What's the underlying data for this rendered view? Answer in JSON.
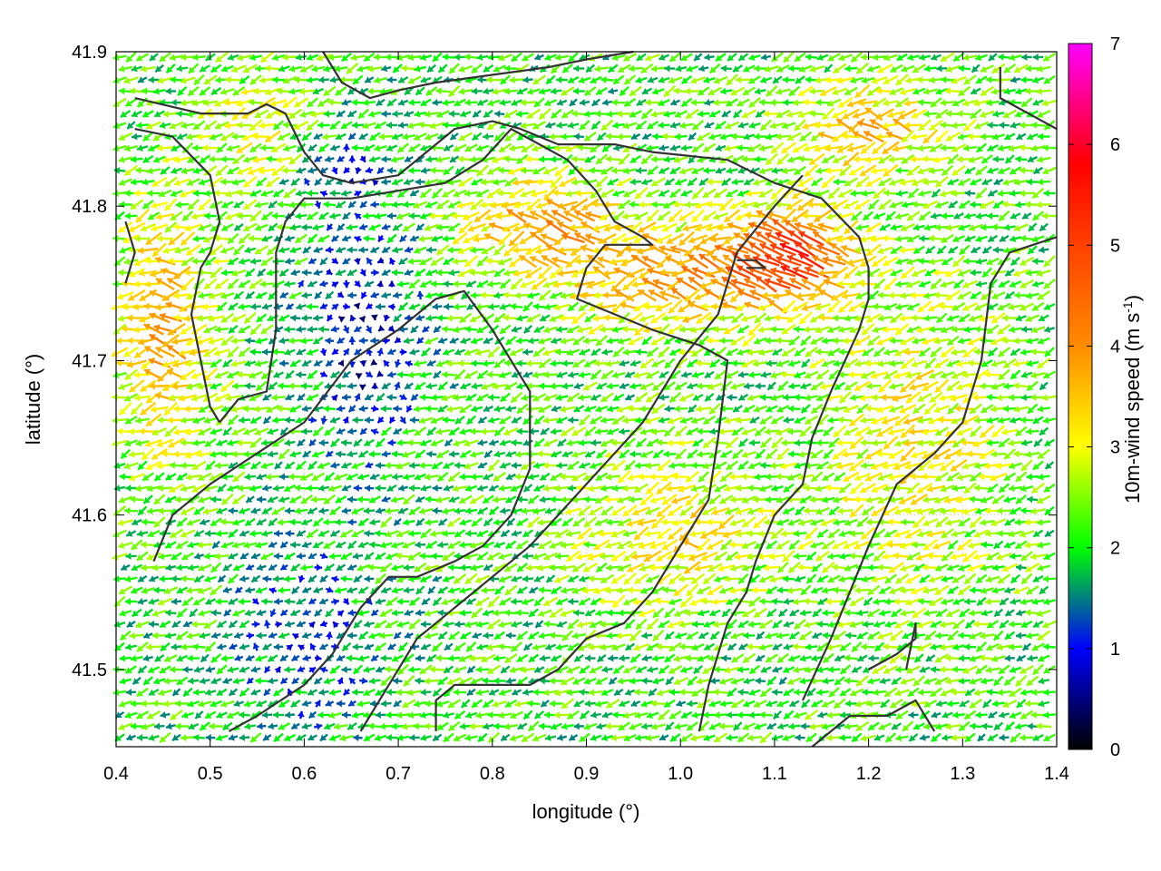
{
  "chart_data": {
    "type": "quiver",
    "xlabel": "longitude (°)",
    "ylabel": "latitude (°)",
    "xlim": [
      0.4,
      1.4
    ],
    "ylim": [
      41.45,
      41.9
    ],
    "x_ticks": [
      "0.4",
      "0.5",
      "0.6",
      "0.7",
      "0.8",
      "0.9",
      "1.0",
      "1.1",
      "1.2",
      "1.3",
      "1.4"
    ],
    "y_ticks": [
      "41.5",
      "41.6",
      "41.7",
      "41.8",
      "41.9"
    ],
    "grid": true,
    "colorbar": {
      "label_main": "10m-wind speed (m s",
      "label_sup": "-1",
      "label_close": ")",
      "range": [
        0,
        7
      ],
      "ticks": [
        "0",
        "1",
        "2",
        "3",
        "4",
        "5",
        "6",
        "7"
      ],
      "colors": [
        "#000000",
        "#0000ff",
        "#00ff00",
        "#ffff00",
        "#ff8c00",
        "#ff0000",
        "#ff00ff"
      ]
    },
    "wind_direction_predominant": "west-southwest (toward the west)",
    "contours": [
      [
        [
          0.42,
          41.87
        ],
        [
          0.49,
          41.86
        ],
        [
          0.54,
          41.86
        ],
        [
          0.56,
          41.866
        ],
        [
          0.58,
          41.86
        ],
        [
          0.6,
          41.835
        ],
        [
          0.62,
          41.82
        ],
        [
          0.65,
          41.815
        ],
        [
          0.7,
          41.82
        ],
        [
          0.73,
          41.835
        ],
        [
          0.76,
          41.85
        ],
        [
          0.8,
          41.855
        ],
        [
          0.83,
          41.85
        ],
        [
          0.87,
          41.84
        ],
        [
          0.93,
          41.84
        ],
        [
          0.97,
          41.835
        ],
        [
          1.05,
          41.83
        ],
        [
          1.1,
          41.815
        ],
        [
          1.15,
          41.805
        ],
        [
          1.19,
          41.78
        ],
        [
          1.2,
          41.76
        ],
        [
          1.2,
          41.74
        ],
        [
          1.19,
          41.72
        ],
        [
          1.16,
          41.68
        ],
        [
          1.14,
          41.65
        ],
        [
          1.13,
          41.62
        ],
        [
          1.1,
          41.6
        ],
        [
          1.08,
          41.57
        ],
        [
          1.07,
          41.55
        ],
        [
          1.05,
          41.53
        ],
        [
          1.03,
          41.49
        ],
        [
          1.02,
          41.46
        ]
      ],
      [
        [
          0.42,
          41.85
        ],
        [
          0.46,
          41.845
        ],
        [
          0.5,
          41.82
        ],
        [
          0.51,
          41.79
        ],
        [
          0.5,
          41.77
        ],
        [
          0.49,
          41.76
        ],
        [
          0.48,
          41.73
        ],
        [
          0.49,
          41.7
        ],
        [
          0.5,
          41.67
        ],
        [
          0.51,
          41.66
        ]
      ],
      [
        [
          0.51,
          41.66
        ],
        [
          0.53,
          41.675
        ],
        [
          0.56,
          41.68
        ],
        [
          0.57,
          41.72
        ],
        [
          0.57,
          41.77
        ],
        [
          0.58,
          41.79
        ],
        [
          0.6,
          41.805
        ],
        [
          0.65,
          41.805
        ],
        [
          0.7,
          41.81
        ],
        [
          0.75,
          41.815
        ],
        [
          0.79,
          41.83
        ],
        [
          0.82,
          41.85
        ],
        [
          0.85,
          41.84
        ],
        [
          0.88,
          41.83
        ],
        [
          0.91,
          41.81
        ],
        [
          0.93,
          41.79
        ],
        [
          0.96,
          41.78
        ],
        [
          0.97,
          41.775
        ],
        [
          0.92,
          41.775
        ],
        [
          0.9,
          41.76
        ],
        [
          0.89,
          41.74
        ],
        [
          0.93,
          41.73
        ],
        [
          0.97,
          41.72
        ],
        [
          1.02,
          41.71
        ],
        [
          1.05,
          41.7
        ],
        [
          1.04,
          41.65
        ],
        [
          1.03,
          41.61
        ],
        [
          1.0,
          41.58
        ],
        [
          0.97,
          41.55
        ],
        [
          0.94,
          41.53
        ],
        [
          0.9,
          41.52
        ],
        [
          0.87,
          41.5
        ],
        [
          0.84,
          41.49
        ],
        [
          0.8,
          41.49
        ],
        [
          0.76,
          41.49
        ],
        [
          0.74,
          41.48
        ],
        [
          0.74,
          41.46
        ]
      ],
      [
        [
          0.44,
          41.57
        ],
        [
          0.46,
          41.6
        ],
        [
          0.5,
          41.62
        ],
        [
          0.55,
          41.64
        ],
        [
          0.6,
          41.66
        ],
        [
          0.65,
          41.7
        ],
        [
          0.7,
          41.72
        ],
        [
          0.74,
          41.74
        ],
        [
          0.77,
          41.745
        ],
        [
          0.8,
          41.72
        ],
        [
          0.84,
          41.68
        ],
        [
          0.84,
          41.63
        ],
        [
          0.82,
          41.6
        ],
        [
          0.79,
          41.58
        ],
        [
          0.76,
          41.57
        ],
        [
          0.72,
          41.56
        ],
        [
          0.69,
          41.56
        ],
        [
          0.66,
          41.54
        ],
        [
          0.63,
          41.51
        ],
        [
          0.6,
          41.49
        ],
        [
          0.55,
          41.47
        ],
        [
          0.52,
          41.46
        ]
      ],
      [
        [
          0.66,
          41.46
        ],
        [
          0.69,
          41.49
        ],
        [
          0.72,
          41.52
        ],
        [
          0.76,
          41.54
        ],
        [
          0.8,
          41.56
        ],
        [
          0.84,
          41.58
        ],
        [
          0.87,
          41.6
        ],
        [
          0.9,
          41.62
        ],
        [
          0.93,
          41.64
        ],
        [
          0.96,
          41.66
        ],
        [
          1.0,
          41.7
        ],
        [
          1.04,
          41.73
        ],
        [
          1.06,
          41.77
        ],
        [
          1.1,
          41.8
        ],
        [
          1.13,
          41.82
        ]
      ],
      [
        [
          1.14,
          41.45
        ],
        [
          1.18,
          41.47
        ],
        [
          1.22,
          41.47
        ],
        [
          1.25,
          41.48
        ],
        [
          1.27,
          41.46
        ]
      ],
      [
        [
          1.2,
          41.5
        ],
        [
          1.23,
          41.51
        ],
        [
          1.25,
          41.52
        ],
        [
          1.25,
          41.53
        ],
        [
          1.24,
          41.5
        ]
      ],
      [
        [
          1.13,
          41.48
        ],
        [
          1.16,
          41.52
        ],
        [
          1.2,
          41.58
        ],
        [
          1.23,
          41.62
        ],
        [
          1.27,
          41.64
        ],
        [
          1.3,
          41.66
        ],
        [
          1.32,
          41.7
        ],
        [
          1.33,
          41.75
        ],
        [
          1.35,
          41.77
        ],
        [
          1.4,
          41.78
        ]
      ],
      [
        [
          1.34,
          41.89
        ],
        [
          1.34,
          41.87
        ],
        [
          1.37,
          41.86
        ],
        [
          1.4,
          41.85
        ]
      ],
      [
        [
          0.62,
          41.9
        ],
        [
          0.64,
          41.88
        ],
        [
          0.67,
          41.87
        ],
        [
          0.7,
          41.875
        ],
        [
          0.74,
          41.88
        ],
        [
          0.8,
          41.885
        ],
        [
          0.86,
          41.89
        ],
        [
          0.9,
          41.895
        ],
        [
          0.95,
          41.9
        ]
      ],
      [
        [
          0.41,
          41.75
        ],
        [
          0.42,
          41.77
        ],
        [
          0.41,
          41.79
        ]
      ],
      [
        [
          1.06,
          41.765
        ],
        [
          1.08,
          41.765
        ],
        [
          1.09,
          41.76
        ],
        [
          1.07,
          41.76
        ]
      ]
    ]
  }
}
